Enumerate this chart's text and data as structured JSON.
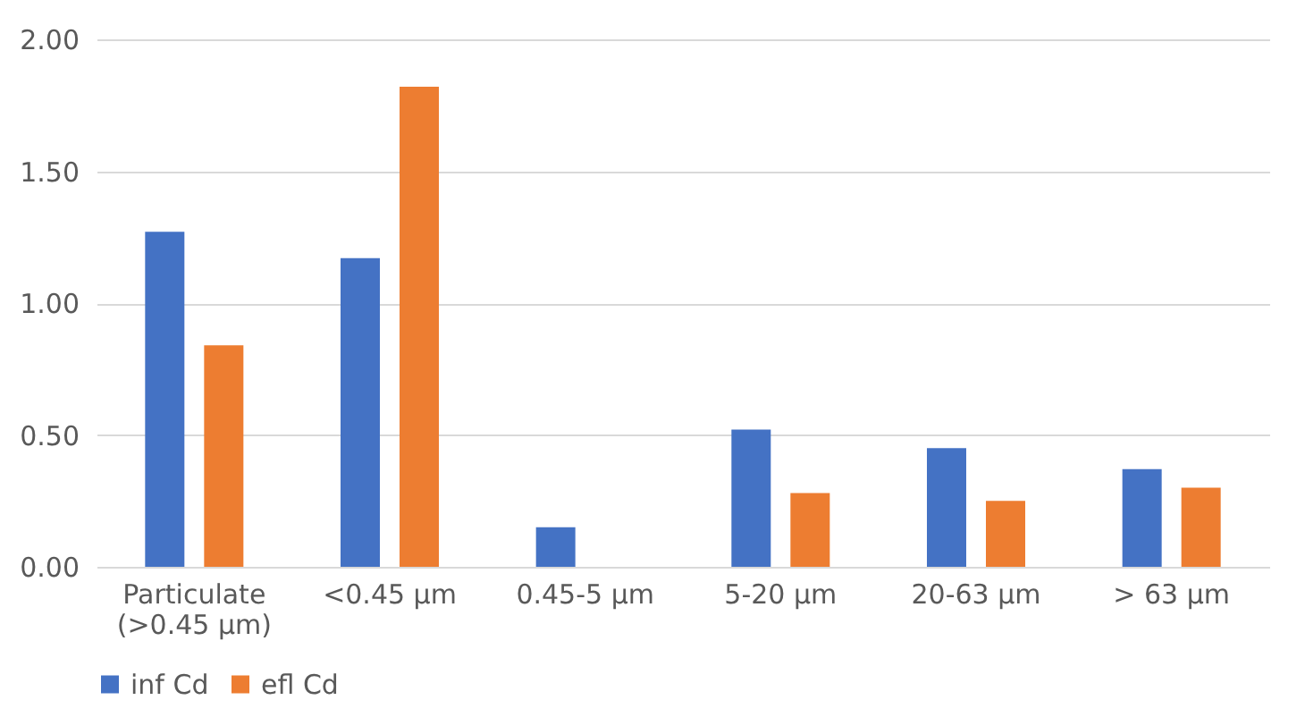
{
  "chart_data": {
    "type": "bar",
    "categories": [
      "Particulate\n(>0.45 µm)",
      "<0.45 µm",
      "0.45-5 µm",
      "5-20 µm",
      "20-63 µm",
      "> 63 µm"
    ],
    "series": [
      {
        "name": "inf Cd",
        "color": "#4472c4",
        "values": [
          1.27,
          1.17,
          0.15,
          0.52,
          0.45,
          0.37
        ]
      },
      {
        "name": "efl Cd",
        "color": "#ed7d31",
        "values": [
          0.84,
          1.82,
          null,
          0.28,
          0.25,
          0.3
        ]
      }
    ],
    "ylim": [
      0,
      2
    ],
    "yticks": [
      {
        "value": 0,
        "label": "0.00"
      },
      {
        "value": 0.5,
        "label": "0.50"
      },
      {
        "value": 1,
        "label": "1.00"
      },
      {
        "value": 1.5,
        "label": "1.50"
      },
      {
        "value": 2,
        "label": "2.00"
      }
    ],
    "grid": "y",
    "legend": "bottom"
  }
}
